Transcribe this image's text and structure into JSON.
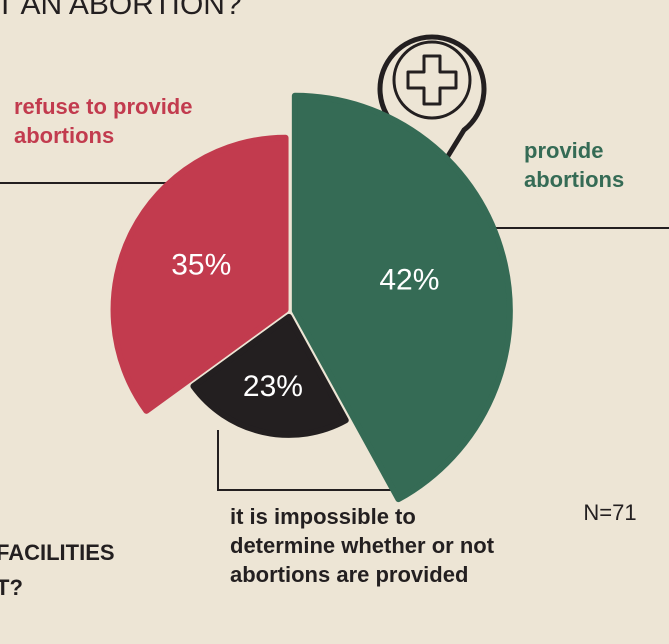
{
  "chart_data": {
    "type": "pie",
    "title": "T AN ABORTION?",
    "subtitle_lines": [
      "FACILITIES",
      "T?"
    ],
    "note": "N=71",
    "categories": [
      "provide abortions",
      "it is impossible to determine whether or not abortions are provided",
      "refuse to provide abortions"
    ],
    "values": [
      42,
      23,
      35
    ],
    "value_labels": [
      "42%",
      "23%",
      "35%"
    ],
    "colors": [
      "#356b55",
      "#231f20",
      "#c23b4e"
    ]
  }
}
